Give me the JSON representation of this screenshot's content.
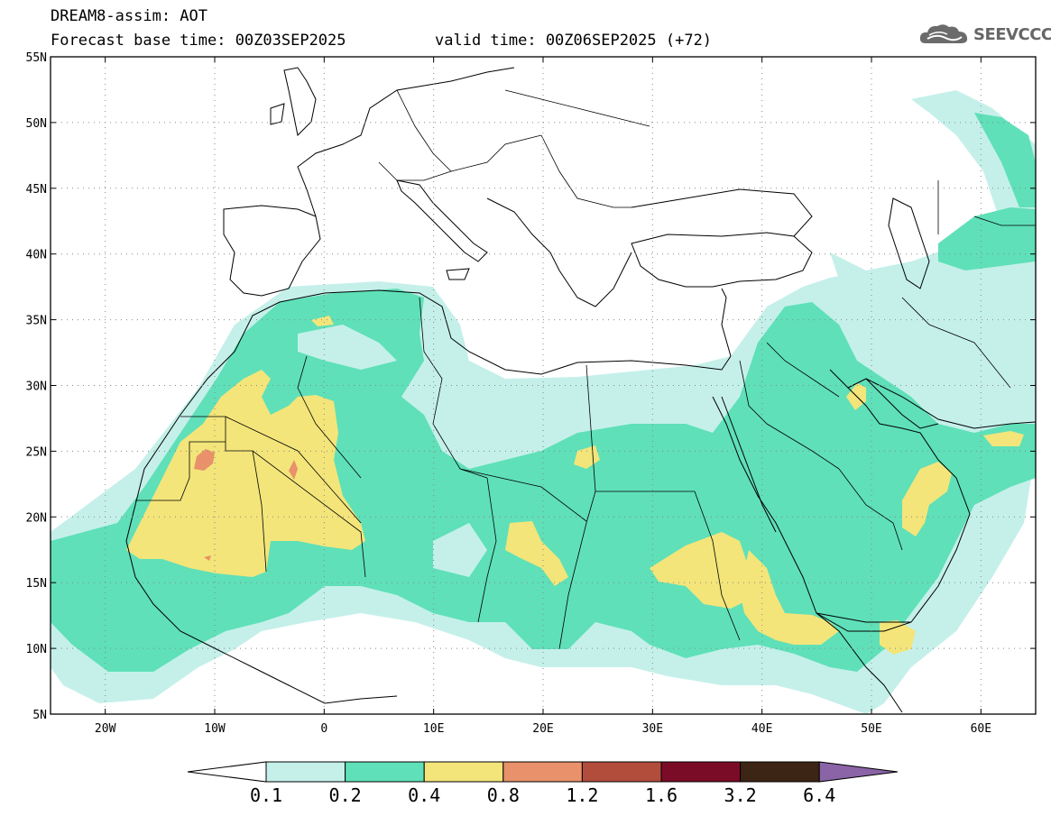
{
  "header": {
    "title": "DREAM8-assim: AOT",
    "base_time": "Forecast base time: 00Z03SEP2025",
    "valid_time": "valid time: 00Z06SEP2025 (+72)"
  },
  "logo": {
    "text": "SEEVCCC",
    "icon": "cloud-icon"
  },
  "map": {
    "lat_labels": [
      "55N",
      "50N",
      "45N",
      "40N",
      "35N",
      "30N",
      "25N",
      "20N",
      "15N",
      "10N",
      "5N"
    ],
    "lon_labels": [
      "20W",
      "10W",
      "0",
      "10E",
      "20E",
      "30E",
      "40E",
      "50E",
      "60E"
    ],
    "extent": {
      "lon": [
        -25,
        65
      ],
      "lat": [
        5,
        55
      ]
    }
  },
  "colorbar": {
    "levels": [
      "0.1",
      "0.2",
      "0.4",
      "0.8",
      "1.2",
      "1.6",
      "3.2",
      "6.4"
    ],
    "colors": [
      "#c5f0ea",
      "#5fe0b8",
      "#f3e57a",
      "#e8916a",
      "#b24d3c",
      "#7a0c28",
      "#3d2515",
      "#8a64a6"
    ],
    "under_color": "#ffffff",
    "over_color": "#8a64a6"
  }
}
